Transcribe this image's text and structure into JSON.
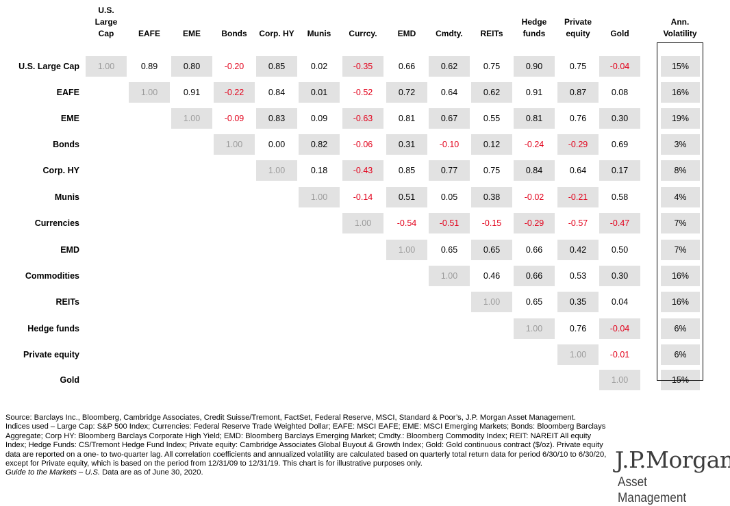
{
  "chart_data": {
    "type": "table",
    "columns": [
      "U.S. Large Cap",
      "EAFE",
      "EME",
      "Bonds",
      "Corp. HY",
      "Munis",
      "Currcy.",
      "EMD",
      "Cmdty.",
      "REITs",
      "Hedge funds",
      "Private equity",
      "Gold"
    ],
    "rows": [
      "U.S. Large Cap",
      "EAFE",
      "EME",
      "Bonds",
      "Corp. HY",
      "Munis",
      "Currencies",
      "EMD",
      "Commodities",
      "REITs",
      "Hedge funds",
      "Private equity",
      "Gold"
    ],
    "values": [
      [
        "1.00",
        "0.89",
        "0.80",
        "-0.20",
        "0.85",
        "0.02",
        "-0.35",
        "0.66",
        "0.62",
        "0.75",
        "0.90",
        "0.75",
        "-0.04"
      ],
      [
        "",
        "1.00",
        "0.91",
        "-0.22",
        "0.84",
        "0.01",
        "-0.52",
        "0.72",
        "0.64",
        "0.62",
        "0.91",
        "0.87",
        "0.08"
      ],
      [
        "",
        "",
        "1.00",
        "-0.09",
        "0.83",
        "0.09",
        "-0.63",
        "0.81",
        "0.67",
        "0.55",
        "0.81",
        "0.76",
        "0.30"
      ],
      [
        "",
        "",
        "",
        "1.00",
        "0.00",
        "0.82",
        "-0.06",
        "0.31",
        "-0.10",
        "0.12",
        "-0.24",
        "-0.29",
        "0.69"
      ],
      [
        "",
        "",
        "",
        "",
        "1.00",
        "0.18",
        "-0.43",
        "0.85",
        "0.77",
        "0.75",
        "0.84",
        "0.64",
        "0.17"
      ],
      [
        "",
        "",
        "",
        "",
        "",
        "1.00",
        "-0.14",
        "0.51",
        "0.05",
        "0.38",
        "-0.02",
        "-0.21",
        "0.58"
      ],
      [
        "",
        "",
        "",
        "",
        "",
        "",
        "1.00",
        "-0.54",
        "-0.51",
        "-0.15",
        "-0.29",
        "-0.57",
        "-0.47"
      ],
      [
        "",
        "",
        "",
        "",
        "",
        "",
        "",
        "1.00",
        "0.65",
        "0.65",
        "0.66",
        "0.42",
        "0.50"
      ],
      [
        "",
        "",
        "",
        "",
        "",
        "",
        "",
        "",
        "1.00",
        "0.46",
        "0.66",
        "0.53",
        "0.30"
      ],
      [
        "",
        "",
        "",
        "",
        "",
        "",
        "",
        "",
        "",
        "1.00",
        "0.65",
        "0.35",
        "0.04"
      ],
      [
        "",
        "",
        "",
        "",
        "",
        "",
        "",
        "",
        "",
        "",
        "1.00",
        "0.76",
        "-0.04"
      ],
      [
        "",
        "",
        "",
        "",
        "",
        "",
        "",
        "",
        "",
        "",
        "",
        "1.00",
        "-0.01"
      ],
      [
        "",
        "",
        "",
        "",
        "",
        "",
        "",
        "",
        "",
        "",
        "",
        "",
        "1.00"
      ]
    ],
    "volatility_header": "Ann. Volatility",
    "volatility": [
      "15%",
      "16%",
      "19%",
      "3%",
      "8%",
      "4%",
      "7%",
      "7%",
      "16%",
      "16%",
      "6%",
      "6%",
      "15%"
    ],
    "negative_color": "#e2001a",
    "diagonal_color": "#9b9b9b",
    "shade_color": "#e2e2e2"
  },
  "footnotes": {
    "source": "Source: Barclays Inc., Bloomberg, Cambridge Associates, Credit Suisse/Tremont, FactSet, Federal Reserve, MSCI, Standard & Poor’s, J.P. Morgan Asset Management.",
    "indices": "Indices used – Large Cap: S&P 500 Index; Currencies: Federal Reserve Trade Weighted Dollar; EAFE: MSCI EAFE; EME: MSCI Emerging Markets; Bonds: Bloomberg Barclays Aggregate; Corp HY: Bloomberg Barclays Corporate High Yield; EMD: Bloomberg Barclays Emerging Market; Cmdty.: Bloomberg Commodity Index; REIT: NAREIT All equity Index; Hedge Funds: CS/Tremont Hedge Fund Index; Private equity: Cambridge Associates Global Buyout & Growth Index; Gold: Gold continuous contract ($/oz). Private equity data are reported on a one- to two-quarter lag. All correlation coefficients and annualized volatility are calculated based on quarterly total return data for period 6/30/10 to 6/30/20, except for Private equity, which is based on the period from 12/31/09 to 12/31/19. This chart is for illustrative purposes only.",
    "guide_title": "Guide to the Markets – U.S.",
    "guide_rest": " Data are as of June 30, 2020."
  },
  "logo": {
    "brand": "J.P.Morgan",
    "sub": "Asset Management"
  }
}
